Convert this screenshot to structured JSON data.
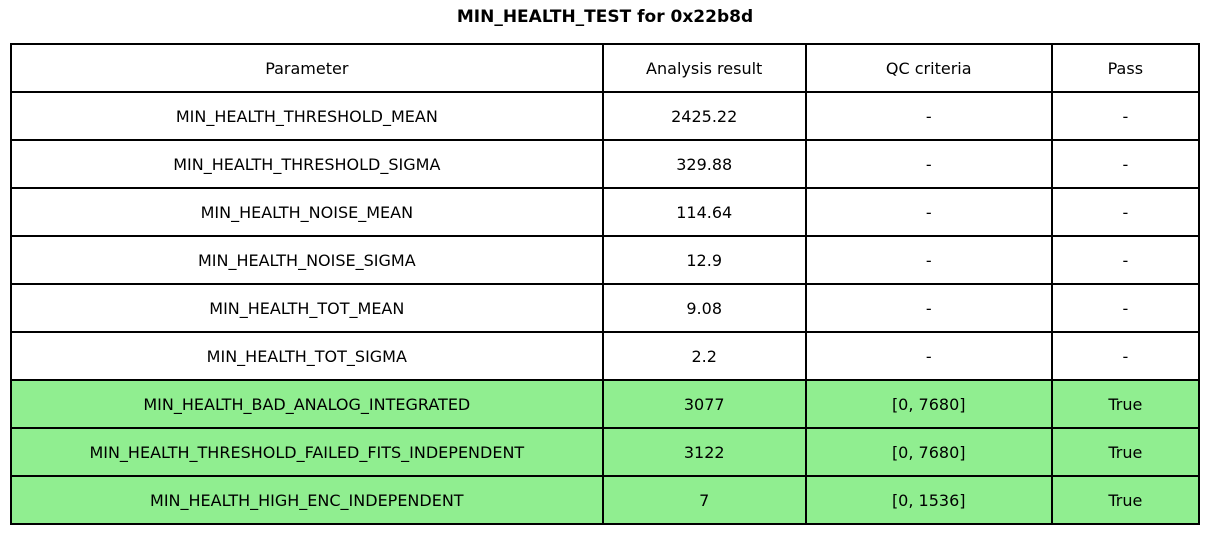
{
  "title": "MIN_HEALTH_TEST for 0x22b8d",
  "colors": {
    "pass_highlight": "#90EE90",
    "border": "#000000",
    "text": "#000000",
    "background": "#FFFFFF"
  },
  "chart_data": {
    "type": "table",
    "title": "MIN_HEALTH_TEST for 0x22b8d",
    "columns": [
      "Parameter",
      "Analysis result",
      "QC criteria",
      "Pass"
    ],
    "rows": [
      [
        "MIN_HEALTH_THRESHOLD_MEAN",
        "2425.22",
        "-",
        "-"
      ],
      [
        "MIN_HEALTH_THRESHOLD_SIGMA",
        "329.88",
        "-",
        "-"
      ],
      [
        "MIN_HEALTH_NOISE_MEAN",
        "114.64",
        "-",
        "-"
      ],
      [
        "MIN_HEALTH_NOISE_SIGMA",
        "12.9",
        "-",
        "-"
      ],
      [
        "MIN_HEALTH_TOT_MEAN",
        "9.08",
        "-",
        "-"
      ],
      [
        "MIN_HEALTH_TOT_SIGMA",
        "2.2",
        "-",
        "-"
      ],
      [
        "MIN_HEALTH_BAD_ANALOG_INTEGRATED",
        "3077",
        "[0, 7680]",
        "True"
      ],
      [
        "MIN_HEALTH_THRESHOLD_FAILED_FITS_INDEPENDENT",
        "3122",
        "[0, 7680]",
        "True"
      ],
      [
        "MIN_HEALTH_HIGH_ENC_INDEPENDENT",
        "7",
        "[0, 1536]",
        "True"
      ]
    ],
    "highlighted_rows": [
      6,
      7,
      8
    ],
    "cell_names": [
      "cell-parameter",
      "cell-analysis-result",
      "cell-qc-criteria",
      "cell-pass"
    ]
  }
}
